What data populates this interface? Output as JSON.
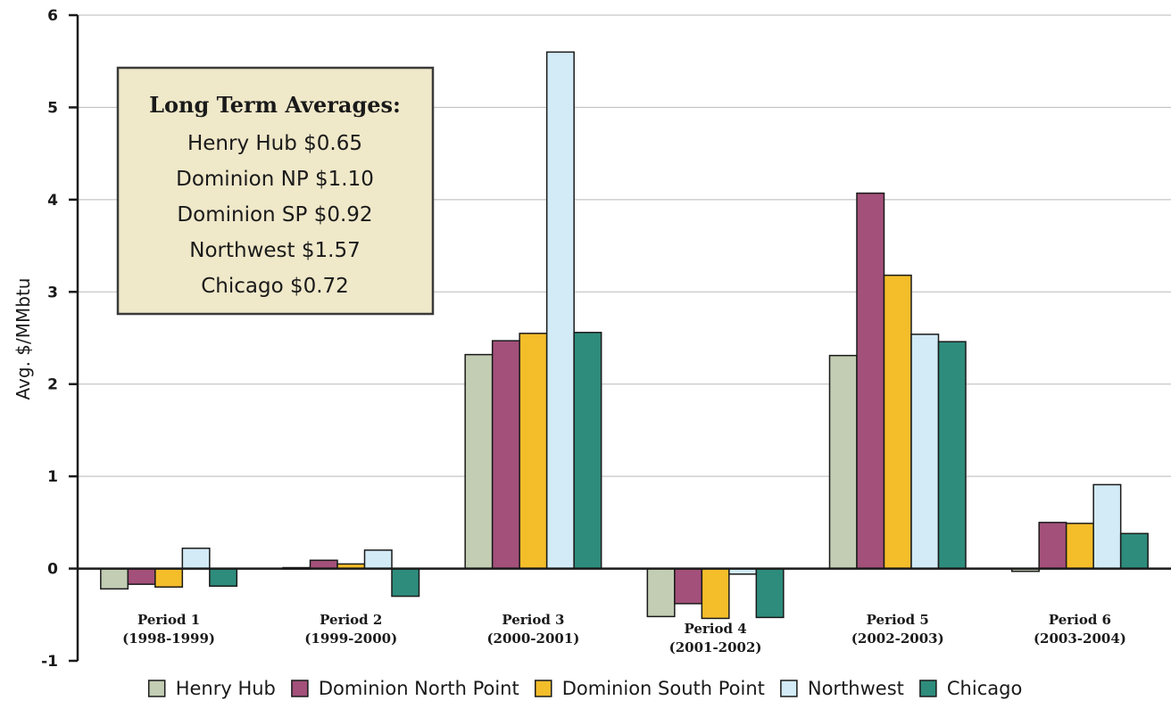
{
  "chart_data": {
    "type": "bar",
    "title": "",
    "xlabel": "",
    "ylabel": "Avg. $/MMbtu",
    "ylim": [
      -1,
      6
    ],
    "yticks": [
      -1,
      0,
      1,
      2,
      3,
      4,
      5,
      6
    ],
    "grid": true,
    "legend_position": "bottom",
    "categories": [
      {
        "line1": "Period 1",
        "line2": "(1998-1999)"
      },
      {
        "line1": "Period 2",
        "line2": "(1999-2000)"
      },
      {
        "line1": "Period 3",
        "line2": "(2000-2001)"
      },
      {
        "line1": "Period 4",
        "line2": "(2001-2002)"
      },
      {
        "line1": "Period 5",
        "line2": "(2002-2003)"
      },
      {
        "line1": "Period 6",
        "line2": "(2003-2004)"
      }
    ],
    "series": [
      {
        "name": "Henry Hub",
        "color": "#c2cdb3",
        "values": [
          -0.22,
          0.01,
          2.32,
          -0.52,
          2.31,
          -0.03
        ]
      },
      {
        "name": "Dominion North Point",
        "color": "#a3507a",
        "values": [
          -0.17,
          0.09,
          2.47,
          -0.38,
          4.07,
          0.5
        ]
      },
      {
        "name": "Dominion South Point",
        "color": "#f4bd2a",
        "values": [
          -0.2,
          0.05,
          2.55,
          -0.54,
          3.18,
          0.49
        ]
      },
      {
        "name": "Northwest",
        "color": "#d2ebf6",
        "values": [
          0.22,
          0.2,
          5.6,
          -0.06,
          2.54,
          0.91
        ]
      },
      {
        "name": "Chicago",
        "color": "#2e8c7c",
        "values": [
          -0.19,
          -0.3,
          2.56,
          -0.53,
          2.46,
          0.38
        ]
      }
    ],
    "annotation": {
      "title": "Long Term Averages:",
      "lines": [
        "Henry Hub $0.65",
        "Dominion NP $1.10",
        "Dominion SP $0.92",
        "Northwest $1.57",
        "Chicago $0.72"
      ],
      "background": "#efe8c9"
    }
  }
}
